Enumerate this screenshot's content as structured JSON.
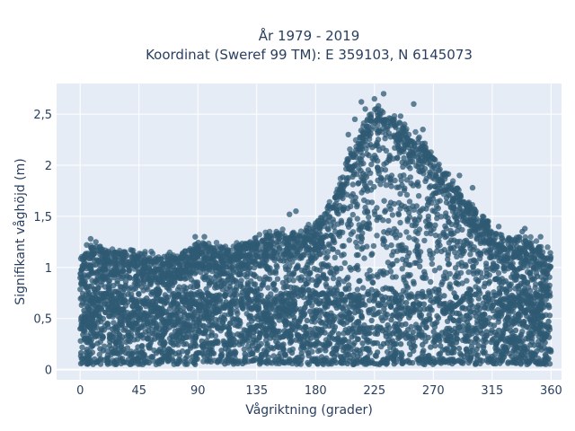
{
  "chart_data": {
    "type": "scatter",
    "title_lines": [
      "År 1979 - 2019",
      "Koordinat (Sweref 99 TM): E 359103, N 6145073"
    ],
    "xlabel": "Vågriktning (grader)",
    "ylabel": "Signifikant våghöjd (m)",
    "xlim": [
      -18,
      368
    ],
    "ylim": [
      -0.1,
      2.8
    ],
    "xticks": [
      0,
      45,
      90,
      135,
      180,
      225,
      270,
      315,
      360
    ],
    "xtick_labels": [
      "0",
      "45",
      "90",
      "135",
      "180",
      "225",
      "270",
      "315",
      "360"
    ],
    "yticks": [
      0,
      0.5,
      1,
      1.5,
      2,
      2.5
    ],
    "ytick_labels": [
      "0",
      "0,5",
      "1",
      "1,5",
      "2",
      "2,5"
    ],
    "grid": true,
    "legend": "none",
    "marker_color": "#2f5a73",
    "background": "#e5ecf6",
    "envelope_max": [
      [
        0,
        1.1
      ],
      [
        10,
        1.22
      ],
      [
        20,
        1.15
      ],
      [
        30,
        1.18
      ],
      [
        45,
        1.15
      ],
      [
        60,
        1.1
      ],
      [
        75,
        1.12
      ],
      [
        90,
        1.25
      ],
      [
        105,
        1.2
      ],
      [
        120,
        1.22
      ],
      [
        135,
        1.28
      ],
      [
        150,
        1.35
      ],
      [
        165,
        1.35
      ],
      [
        180,
        1.42
      ],
      [
        195,
        1.7
      ],
      [
        205,
        2.1
      ],
      [
        215,
        2.35
      ],
      [
        225,
        2.6
      ],
      [
        235,
        2.5
      ],
      [
        245,
        2.4
      ],
      [
        255,
        2.3
      ],
      [
        265,
        2.2
      ],
      [
        275,
        2.0
      ],
      [
        285,
        1.85
      ],
      [
        295,
        1.65
      ],
      [
        305,
        1.55
      ],
      [
        315,
        1.4
      ],
      [
        325,
        1.3
      ],
      [
        335,
        1.28
      ],
      [
        345,
        1.25
      ],
      [
        360,
        1.15
      ]
    ],
    "outliers": [
      [
        225,
        2.65
      ],
      [
        232,
        2.7
      ],
      [
        218,
        2.55
      ],
      [
        240,
        2.45
      ],
      [
        255,
        2.6
      ],
      [
        210,
        2.45
      ],
      [
        262,
        2.35
      ],
      [
        245,
        2.48
      ],
      [
        228,
        2.58
      ],
      [
        236,
        2.42
      ],
      [
        250,
        2.2
      ],
      [
        290,
        1.9
      ],
      [
        300,
        1.78
      ],
      [
        165,
        1.55
      ],
      [
        160,
        1.52
      ],
      [
        8,
        1.28
      ],
      [
        12,
        1.25
      ],
      [
        5,
        1.22
      ],
      [
        88,
        1.3
      ],
      [
        95,
        1.3
      ],
      [
        352,
        1.3
      ],
      [
        338,
        1.35
      ],
      [
        340,
        1.38
      ],
      [
        320,
        1.4
      ],
      [
        312,
        1.45
      ],
      [
        150,
        1.35
      ],
      [
        130,
        1.25
      ],
      [
        205,
        2.3
      ],
      [
        215,
        2.62
      ],
      [
        248,
        2.4
      ]
    ],
    "lower_bound": 0.05,
    "dense_band_top": 0.75
  }
}
